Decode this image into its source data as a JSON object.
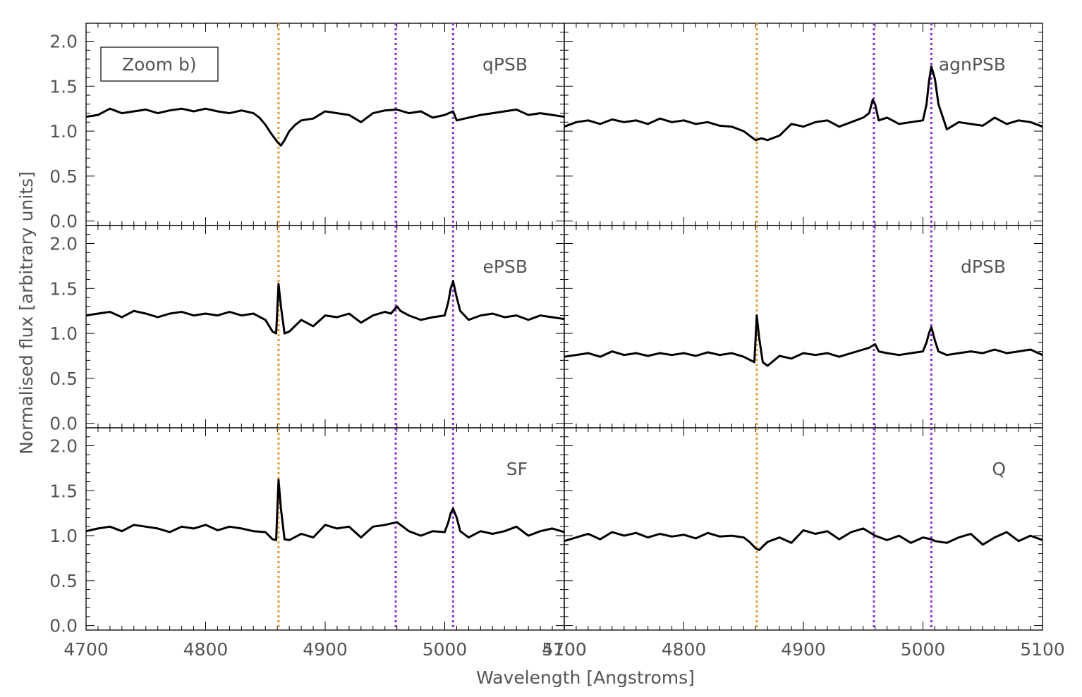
{
  "chart_data": {
    "type": "line",
    "ylabel": "Normalised flux [arbitrary units]",
    "xlabel": "Wavelength [Angstroms]",
    "annotation": "Zoom b)",
    "xlim": [
      4700,
      5100
    ],
    "ylim": [
      -0.05,
      2.2
    ],
    "x_ticks": [
      4700,
      4800,
      4900,
      5000,
      5100
    ],
    "x_tick_labels": [
      "4700",
      "4800",
      "4900",
      "5000",
      "5100"
    ],
    "y_ticks": [
      0.0,
      0.5,
      1.0,
      1.5,
      2.0
    ],
    "y_tick_labels": [
      "0.0",
      "0.5",
      "1.0",
      "1.5",
      "2.0"
    ],
    "grid": false,
    "reference_lines": [
      {
        "x": 4861,
        "color": "#e8982a"
      },
      {
        "x": 4959,
        "color": "#8a2be2"
      },
      {
        "x": 5007,
        "color": "#8a2be2"
      }
    ],
    "line_color": "#000000",
    "panels": [
      {
        "label": "qPSB",
        "x": [
          4700,
          4710,
          4720,
          4730,
          4740,
          4750,
          4760,
          4770,
          4780,
          4790,
          4800,
          4810,
          4820,
          4830,
          4840,
          4845,
          4850,
          4855,
          4860,
          4863,
          4866,
          4870,
          4875,
          4880,
          4890,
          4900,
          4910,
          4920,
          4930,
          4940,
          4950,
          4960,
          4970,
          4980,
          4990,
          5000,
          5007,
          5010,
          5020,
          5030,
          5040,
          5050,
          5060,
          5070,
          5080,
          5090,
          5100
        ],
        "y": [
          1.16,
          1.18,
          1.25,
          1.2,
          1.22,
          1.24,
          1.2,
          1.23,
          1.25,
          1.22,
          1.25,
          1.22,
          1.2,
          1.23,
          1.2,
          1.15,
          1.07,
          0.97,
          0.88,
          0.84,
          0.9,
          1.0,
          1.07,
          1.12,
          1.14,
          1.22,
          1.2,
          1.18,
          1.1,
          1.2,
          1.23,
          1.24,
          1.2,
          1.22,
          1.15,
          1.18,
          1.22,
          1.12,
          1.15,
          1.18,
          1.2,
          1.22,
          1.24,
          1.18,
          1.2,
          1.18,
          1.16
        ]
      },
      {
        "label": "agnPSB",
        "x": [
          4700,
          4710,
          4720,
          4730,
          4740,
          4750,
          4760,
          4770,
          4780,
          4790,
          4800,
          4810,
          4820,
          4830,
          4840,
          4850,
          4860,
          4865,
          4870,
          4880,
          4890,
          4900,
          4910,
          4920,
          4930,
          4940,
          4950,
          4955,
          4958,
          4960,
          4963,
          4970,
          4980,
          4990,
          5000,
          5003,
          5005,
          5007,
          5010,
          5013,
          5020,
          5030,
          5040,
          5050,
          5060,
          5070,
          5080,
          5090,
          5100
        ],
        "y": [
          1.05,
          1.1,
          1.12,
          1.08,
          1.13,
          1.1,
          1.12,
          1.08,
          1.14,
          1.1,
          1.12,
          1.08,
          1.1,
          1.06,
          1.05,
          1.0,
          0.9,
          0.92,
          0.9,
          0.95,
          1.08,
          1.05,
          1.1,
          1.12,
          1.05,
          1.1,
          1.15,
          1.2,
          1.35,
          1.3,
          1.12,
          1.15,
          1.08,
          1.1,
          1.12,
          1.3,
          1.55,
          1.72,
          1.58,
          1.3,
          1.02,
          1.1,
          1.08,
          1.06,
          1.15,
          1.08,
          1.12,
          1.1,
          1.05
        ]
      },
      {
        "label": "ePSB",
        "x": [
          4700,
          4710,
          4720,
          4730,
          4740,
          4750,
          4760,
          4770,
          4780,
          4790,
          4800,
          4810,
          4820,
          4830,
          4840,
          4850,
          4856,
          4859,
          4861,
          4863,
          4866,
          4870,
          4880,
          4890,
          4900,
          4910,
          4920,
          4930,
          4940,
          4950,
          4955,
          4960,
          4963,
          4970,
          4980,
          4990,
          5000,
          5003,
          5005,
          5007,
          5010,
          5013,
          5020,
          5030,
          5040,
          5050,
          5060,
          5070,
          5080,
          5090,
          5100
        ],
        "y": [
          1.2,
          1.22,
          1.24,
          1.18,
          1.25,
          1.22,
          1.18,
          1.22,
          1.24,
          1.2,
          1.22,
          1.2,
          1.24,
          1.2,
          1.22,
          1.15,
          1.02,
          1.0,
          1.55,
          1.3,
          1.0,
          1.02,
          1.15,
          1.08,
          1.2,
          1.18,
          1.22,
          1.12,
          1.2,
          1.24,
          1.22,
          1.3,
          1.25,
          1.2,
          1.15,
          1.18,
          1.2,
          1.35,
          1.5,
          1.58,
          1.4,
          1.25,
          1.15,
          1.2,
          1.22,
          1.18,
          1.2,
          1.15,
          1.2,
          1.18,
          1.16
        ]
      },
      {
        "label": "dPSB",
        "x": [
          4700,
          4710,
          4720,
          4730,
          4740,
          4750,
          4760,
          4770,
          4780,
          4790,
          4800,
          4810,
          4820,
          4830,
          4840,
          4850,
          4856,
          4859,
          4861,
          4863,
          4866,
          4870,
          4880,
          4890,
          4900,
          4910,
          4920,
          4930,
          4940,
          4950,
          4955,
          4960,
          4963,
          4970,
          4980,
          4990,
          5000,
          5003,
          5005,
          5007,
          5010,
          5013,
          5020,
          5030,
          5040,
          5050,
          5060,
          5070,
          5080,
          5090,
          5100
        ],
        "y": [
          0.74,
          0.76,
          0.78,
          0.74,
          0.8,
          0.76,
          0.78,
          0.75,
          0.78,
          0.76,
          0.78,
          0.75,
          0.79,
          0.76,
          0.78,
          0.74,
          0.7,
          0.68,
          1.2,
          0.95,
          0.68,
          0.64,
          0.75,
          0.72,
          0.78,
          0.76,
          0.78,
          0.74,
          0.78,
          0.82,
          0.84,
          0.88,
          0.8,
          0.78,
          0.76,
          0.78,
          0.8,
          0.9,
          1.0,
          1.07,
          0.92,
          0.8,
          0.76,
          0.78,
          0.8,
          0.78,
          0.82,
          0.78,
          0.8,
          0.82,
          0.76
        ]
      },
      {
        "label": "SF",
        "x": [
          4700,
          4710,
          4720,
          4730,
          4740,
          4750,
          4760,
          4770,
          4780,
          4790,
          4800,
          4810,
          4820,
          4830,
          4840,
          4850,
          4856,
          4859,
          4861,
          4863,
          4866,
          4870,
          4880,
          4890,
          4900,
          4910,
          4920,
          4930,
          4940,
          4950,
          4960,
          4970,
          4980,
          4990,
          5000,
          5003,
          5005,
          5007,
          5010,
          5013,
          5020,
          5030,
          5040,
          5050,
          5060,
          5070,
          5080,
          5090,
          5100
        ],
        "y": [
          1.05,
          1.08,
          1.1,
          1.05,
          1.12,
          1.1,
          1.08,
          1.04,
          1.1,
          1.08,
          1.12,
          1.06,
          1.1,
          1.08,
          1.05,
          1.04,
          0.96,
          0.95,
          1.62,
          1.3,
          0.96,
          0.95,
          1.02,
          0.98,
          1.12,
          1.08,
          1.1,
          0.98,
          1.1,
          1.12,
          1.15,
          1.05,
          1.0,
          1.05,
          1.04,
          1.15,
          1.25,
          1.3,
          1.2,
          1.05,
          0.98,
          1.05,
          1.02,
          1.05,
          1.1,
          1.0,
          1.05,
          1.08,
          1.04
        ]
      },
      {
        "label": "Q",
        "x": [
          4700,
          4710,
          4720,
          4730,
          4740,
          4750,
          4760,
          4770,
          4780,
          4790,
          4800,
          4810,
          4820,
          4830,
          4840,
          4850,
          4855,
          4860,
          4863,
          4866,
          4870,
          4880,
          4890,
          4900,
          4910,
          4920,
          4930,
          4940,
          4950,
          4960,
          4970,
          4980,
          4990,
          5000,
          5007,
          5010,
          5020,
          5030,
          5040,
          5050,
          5060,
          5070,
          5080,
          5090,
          5100
        ],
        "y": [
          0.94,
          0.98,
          1.02,
          0.96,
          1.04,
          1.0,
          1.03,
          0.98,
          1.02,
          0.99,
          1.01,
          0.97,
          1.03,
          0.99,
          1.0,
          0.98,
          0.93,
          0.86,
          0.84,
          0.88,
          0.93,
          0.98,
          0.92,
          1.06,
          1.02,
          1.05,
          0.96,
          1.04,
          1.08,
          1.0,
          0.95,
          1.0,
          0.92,
          0.98,
          0.96,
          0.94,
          0.92,
          0.98,
          1.02,
          0.9,
          0.98,
          1.04,
          0.94,
          1.0,
          0.95
        ]
      }
    ]
  }
}
